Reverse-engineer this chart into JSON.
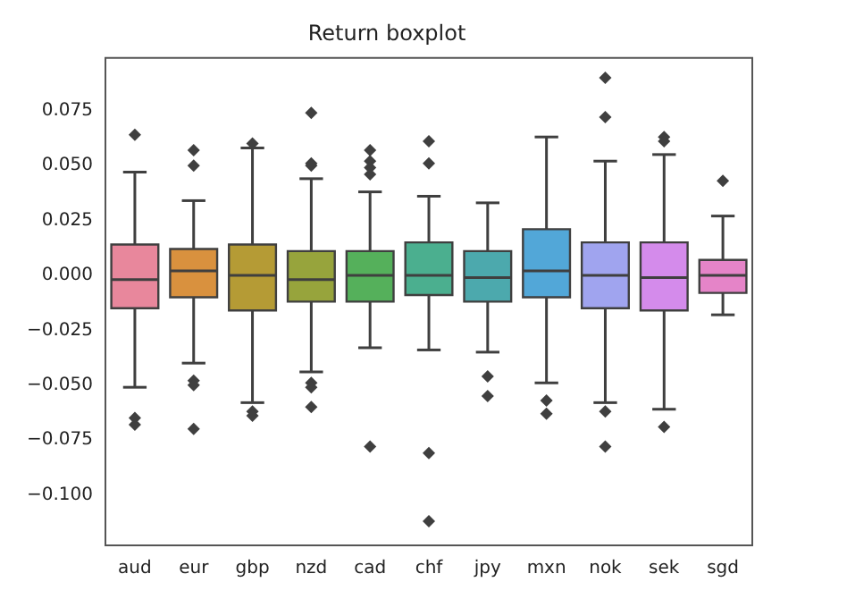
{
  "chart_data": {
    "type": "box",
    "title": "Return boxplot",
    "categories": [
      "aud",
      "eur",
      "gbp",
      "nzd",
      "cad",
      "chf",
      "jpy",
      "mxn",
      "nok",
      "sek",
      "sgd"
    ],
    "colors": [
      "#e8879c",
      "#d9913e",
      "#b59b35",
      "#97a43c",
      "#55b05b",
      "#4baf8f",
      "#4ca9ad",
      "#52a7d8",
      "#a0a4ef",
      "#d48beb",
      "#e584c8"
    ],
    "boxes": [
      {
        "low": -0.051,
        "q1": -0.015,
        "median": -0.002,
        "q3": 0.014,
        "high": 0.047,
        "outliers": [
          0.064,
          -0.065,
          -0.068
        ]
      },
      {
        "low": -0.04,
        "q1": -0.01,
        "median": 0.002,
        "q3": 0.012,
        "high": 0.034,
        "outliers": [
          0.057,
          0.05,
          -0.048,
          -0.05,
          -0.07
        ]
      },
      {
        "low": -0.058,
        "q1": -0.016,
        "median": 0.0,
        "q3": 0.014,
        "high": 0.058,
        "outliers": [
          0.06,
          -0.062,
          -0.064
        ]
      },
      {
        "low": -0.044,
        "q1": -0.012,
        "median": -0.002,
        "q3": 0.011,
        "high": 0.044,
        "outliers": [
          0.074,
          0.051,
          0.05,
          -0.049,
          -0.051,
          -0.06
        ]
      },
      {
        "low": -0.033,
        "q1": -0.012,
        "median": 0.0,
        "q3": 0.011,
        "high": 0.038,
        "outliers": [
          0.057,
          0.052,
          0.049,
          0.046,
          -0.078
        ]
      },
      {
        "low": -0.034,
        "q1": -0.009,
        "median": 0.0,
        "q3": 0.015,
        "high": 0.036,
        "outliers": [
          0.061,
          0.051,
          -0.081,
          -0.112
        ]
      },
      {
        "low": -0.035,
        "q1": -0.012,
        "median": -0.001,
        "q3": 0.011,
        "high": 0.033,
        "outliers": [
          -0.046,
          -0.055
        ]
      },
      {
        "low": -0.049,
        "q1": -0.01,
        "median": 0.002,
        "q3": 0.021,
        "high": 0.063,
        "outliers": [
          -0.057,
          -0.063
        ]
      },
      {
        "low": -0.058,
        "q1": -0.015,
        "median": 0.0,
        "q3": 0.015,
        "high": 0.052,
        "outliers": [
          0.09,
          0.072,
          -0.062,
          -0.078
        ]
      },
      {
        "low": -0.061,
        "q1": -0.016,
        "median": -0.001,
        "q3": 0.015,
        "high": 0.055,
        "outliers": [
          0.063,
          0.061,
          -0.069
        ]
      },
      {
        "low": -0.018,
        "q1": -0.008,
        "median": 0.0,
        "q3": 0.007,
        "high": 0.027,
        "outliers": [
          0.043
        ]
      }
    ],
    "ylim": [
      -0.123,
      0.099
    ],
    "yticks": [
      {
        "value": 0.075,
        "label": "0.075"
      },
      {
        "value": 0.05,
        "label": "0.050"
      },
      {
        "value": 0.025,
        "label": "0.025"
      },
      {
        "value": 0,
        "label": "0.000"
      },
      {
        "value": -0.025,
        "label": "−0.025"
      },
      {
        "value": -0.05,
        "label": "−0.050"
      },
      {
        "value": -0.075,
        "label": "−0.075"
      },
      {
        "value": -0.1,
        "label": "−0.100"
      }
    ],
    "grid": false,
    "legend": false,
    "marker": "diamond"
  }
}
